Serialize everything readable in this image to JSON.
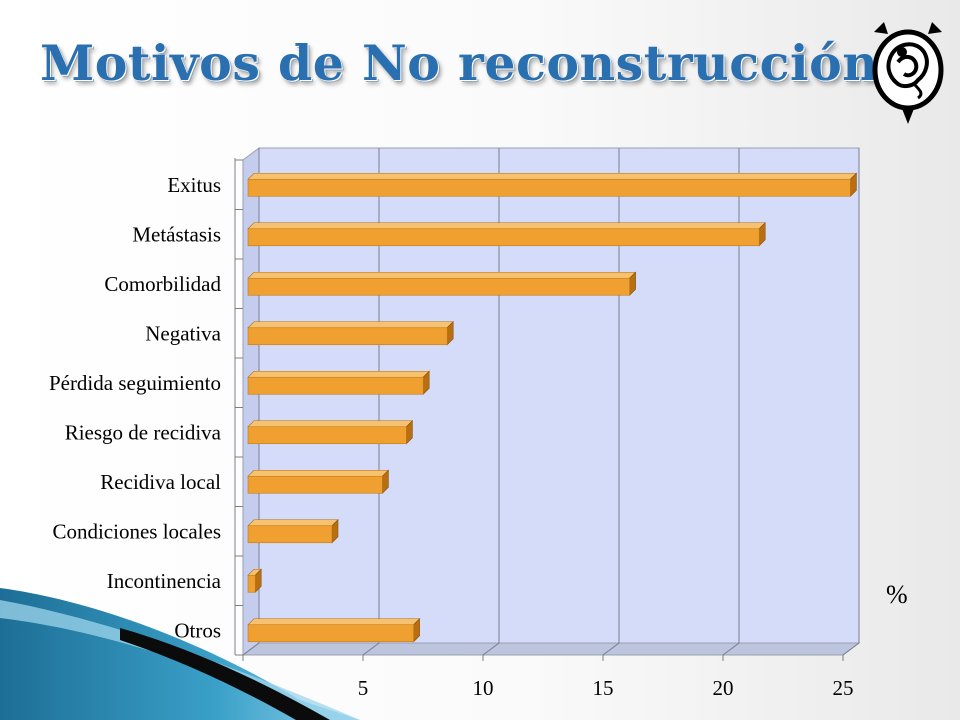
{
  "slide": {
    "title": "Motivos de No reconstrucción"
  },
  "chart_data": {
    "type": "bar",
    "orientation": "horizontal",
    "style": "3d",
    "categories": [
      "Exitus",
      "Metástasis",
      "Comorbilidad",
      "Negativa",
      "Pérdida seguimiento",
      "Riesgo de recidiva",
      "Recidiva local",
      "Condiciones locales",
      "Incontinencia",
      "Otros"
    ],
    "values": [
      25.1,
      21.3,
      15.9,
      8.3,
      7.3,
      6.6,
      5.6,
      3.5,
      0.3,
      6.9
    ],
    "xlim": [
      0,
      25
    ],
    "xticks": [
      "0",
      "5",
      "10",
      "15",
      "20",
      "25"
    ],
    "xlabel": "%",
    "grid": true,
    "bar_color": "#f0a030",
    "plot_background": "#d4dcfa"
  }
}
